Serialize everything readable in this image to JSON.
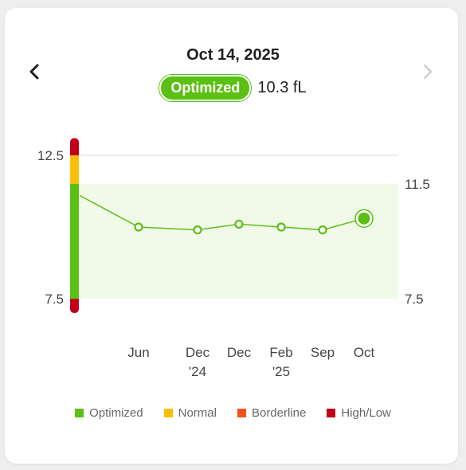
{
  "header": {
    "date": "Oct 14, 2025",
    "status_label": "Optimized",
    "value_text": "10.3 fL"
  },
  "icons": {
    "prev": "chevron-left-icon",
    "next": "chevron-right-icon"
  },
  "colors": {
    "optimized": "#5cbf14",
    "normal": "#f9be0a",
    "borderline": "#f4511e",
    "highlow": "#c0001b",
    "band": "#f1fae9"
  },
  "legend": [
    {
      "label": "Optimized",
      "color": "#5cbf14"
    },
    {
      "label": "Normal",
      "color": "#f9be0a"
    },
    {
      "label": "Borderline",
      "color": "#f4511e"
    },
    {
      "label": "High/Low",
      "color": "#c0001b"
    }
  ],
  "chart_data": {
    "type": "line",
    "unit": "fL",
    "ylim": [
      7.5,
      12.5
    ],
    "left_ticks": [
      "12.5",
      "7.5"
    ],
    "right_ticks": [
      "11.5",
      "7.5"
    ],
    "optimized_range": [
      7.5,
      11.5
    ],
    "grid_lines": [
      12.5
    ],
    "categories": [
      {
        "line1": "Jun",
        "line2": ""
      },
      {
        "line1": "Dec",
        "line2": "'24"
      },
      {
        "line1": "Dec",
        "line2": ""
      },
      {
        "line1": "Feb",
        "line2": "'25"
      },
      {
        "line1": "Sep",
        "line2": ""
      },
      {
        "line1": "Oct",
        "line2": ""
      }
    ],
    "start_value": 11.1,
    "values": [
      10.0,
      9.9,
      10.1,
      10.0,
      9.9,
      10.3
    ],
    "highlight_index": 5,
    "scale_bar": [
      {
        "from": 7.0,
        "to": 7.5,
        "status": "highlow"
      },
      {
        "from": 7.5,
        "to": 11.5,
        "status": "optimized"
      },
      {
        "from": 11.5,
        "to": 12.5,
        "status": "normal"
      },
      {
        "from": 12.5,
        "to": 13.1,
        "status": "highlow"
      }
    ]
  }
}
